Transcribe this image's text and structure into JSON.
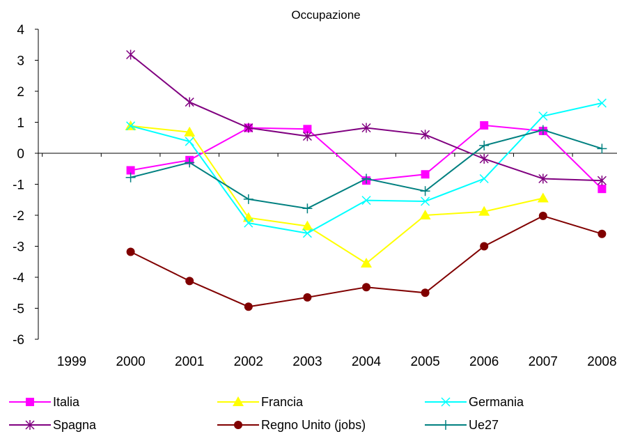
{
  "chart_data": {
    "type": "line",
    "title": "Occupazione",
    "xlabel": "",
    "ylabel": "",
    "categories": [
      "1999",
      "2000",
      "2001",
      "2002",
      "2003",
      "2004",
      "2005",
      "2006",
      "2007",
      "2008"
    ],
    "ylim": [
      -6,
      4
    ],
    "yticks": [
      "4",
      "3",
      "2",
      "1",
      "0",
      "-1",
      "-2",
      "-3",
      "-4",
      "-5",
      "-6"
    ],
    "grid": false,
    "legend_position": "bottom",
    "series": [
      {
        "name": "Italia",
        "color": "#ff00ff",
        "marker": "square",
        "values": [
          null,
          -0.55,
          -0.22,
          0.82,
          0.78,
          -0.88,
          -0.68,
          0.9,
          0.72,
          -1.15
        ]
      },
      {
        "name": "Francia",
        "color": "#ffff00",
        "marker": "triangle",
        "values": [
          null,
          0.88,
          0.68,
          -2.08,
          -2.35,
          -3.55,
          -2.0,
          -1.88,
          -1.45,
          null
        ]
      },
      {
        "name": "Germania",
        "color": "#00ffff",
        "marker": "x",
        "values": [
          null,
          0.88,
          0.38,
          -2.25,
          -2.58,
          -1.52,
          -1.55,
          -0.82,
          1.2,
          1.62
        ]
      },
      {
        "name": "Spagna",
        "color": "#800080",
        "marker": "asterisk",
        "values": [
          null,
          3.18,
          1.65,
          0.82,
          0.55,
          0.82,
          0.6,
          -0.18,
          -0.82,
          -0.88
        ]
      },
      {
        "name": "Regno Unito (jobs)",
        "color": "#800000",
        "marker": "circle",
        "values": [
          null,
          -3.18,
          -4.12,
          -4.95,
          -4.65,
          -4.32,
          -4.5,
          -3.0,
          -2.02,
          -2.6
        ]
      },
      {
        "name": "Ue27",
        "color": "#008080",
        "marker": "plus",
        "values": [
          null,
          -0.78,
          -0.3,
          -1.48,
          -1.78,
          -0.82,
          -1.22,
          0.25,
          0.75,
          0.15
        ]
      }
    ]
  }
}
